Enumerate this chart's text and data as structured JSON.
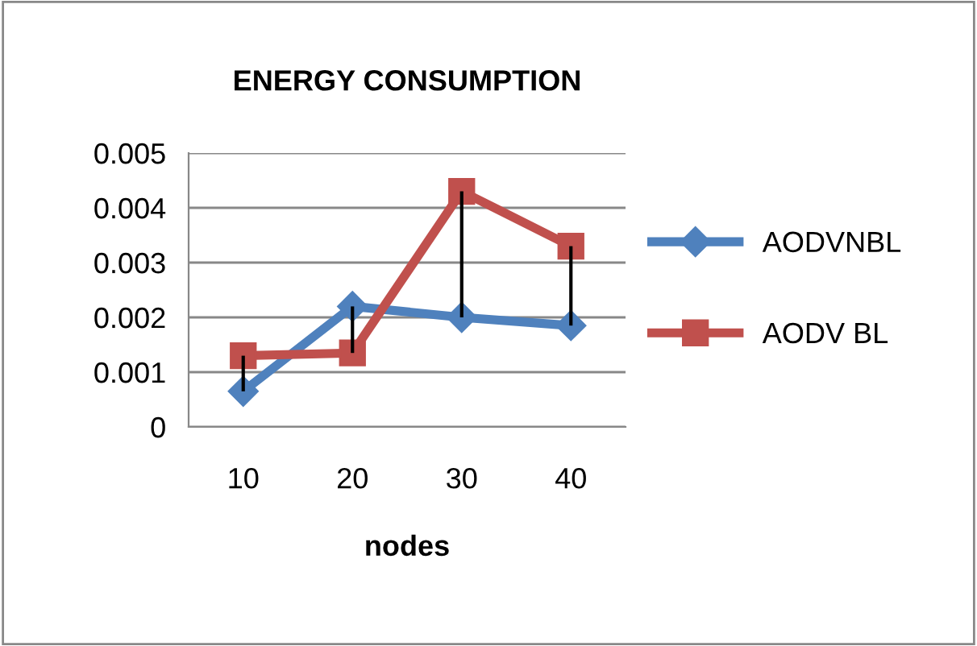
{
  "chart_data": {
    "type": "line",
    "title": "ENERGY CONSUMPTION",
    "xlabel": "nodes",
    "categories": [
      "10",
      "20",
      "30",
      "40"
    ],
    "series": [
      {
        "name": "AODVNBL",
        "color": "#4f81bd",
        "marker": "diamond",
        "values": [
          0.00065,
          0.0022,
          0.002,
          0.00185
        ]
      },
      {
        "name": "AODV BL",
        "color": "#c0504d",
        "marker": "square",
        "values": [
          0.0013,
          0.00135,
          0.0043,
          0.0033
        ],
        "errors": [
          [
            0.00065,
            0.0013
          ],
          [
            0.00135,
            0.0022
          ],
          [
            0.002,
            0.0043
          ],
          [
            0.00185,
            0.0033
          ]
        ]
      }
    ],
    "ylim": [
      0,
      0.005
    ],
    "yticks": [
      0,
      0.001,
      0.002,
      0.003,
      0.004,
      0.005
    ],
    "grid": "y",
    "legend": "right",
    "line_style": "solid"
  }
}
